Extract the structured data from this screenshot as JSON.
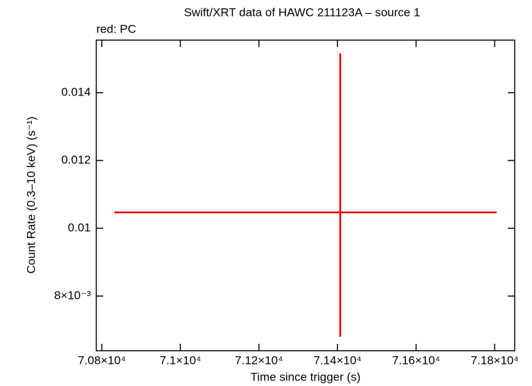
{
  "chart_data": {
    "type": "errorbar",
    "title": "Swift/XRT data of HAWC 211123A – source 1",
    "subtitle": "red: PC",
    "xlabel": "Time since trigger (s)",
    "ylabel": "Count Rate (0.3–10 keV) (s⁻¹)",
    "series": [
      {
        "color": "#e00000",
        "x": [
          71407
        ],
        "values": [
          0.01047
        ],
        "xerr_minus": [
          575
        ],
        "xerr_plus": [
          398
        ],
        "yerr_minus": [
          0.00367
        ],
        "yerr_plus": [
          0.00469
        ]
      }
    ],
    "xlim": [
      70786,
      71851
    ],
    "xticks": [
      {
        "value": 70800,
        "label": "7.08×10⁴"
      },
      {
        "value": 71000,
        "label": "7.1×10⁴"
      },
      {
        "value": 71200,
        "label": "7.12×10⁴"
      },
      {
        "value": 71400,
        "label": "7.14×10⁴"
      },
      {
        "value": 71600,
        "label": "7.16×10⁴"
      },
      {
        "value": 71800,
        "label": "7.18×10⁴"
      }
    ],
    "ylim": [
      0.006388,
      0.01555
    ],
    "yticks": [
      {
        "value": 0.008,
        "label": "8×10⁻³"
      },
      0.01,
      0.012,
      0.014
    ]
  }
}
